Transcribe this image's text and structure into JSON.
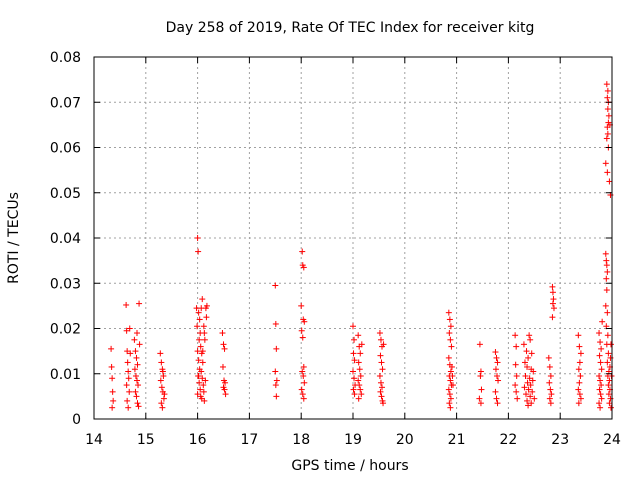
{
  "chart_data": {
    "type": "scatter",
    "title": "Day 258 of 2019, Rate Of TEC Index for receiver kitg",
    "xlabel": "GPS time / hours",
    "ylabel": "ROTI / TECUs",
    "xlim": [
      14,
      24
    ],
    "ylim": [
      0,
      0.08
    ],
    "xticks": [
      "14",
      "15",
      "16",
      "17",
      "18",
      "19",
      "20",
      "21",
      "22",
      "23",
      "24"
    ],
    "yticks": [
      "0",
      "0.01",
      "0.02",
      "0.03",
      "0.04",
      "0.05",
      "0.06",
      "0.07",
      "0.08"
    ],
    "grid": true,
    "marker": "+",
    "color": "#ff0000",
    "series": [
      {
        "name": "ROTI",
        "points": [
          [
            14.33,
            0.0155
          ],
          [
            14.34,
            0.0115
          ],
          [
            14.35,
            0.009
          ],
          [
            14.36,
            0.006
          ],
          [
            14.37,
            0.004
          ],
          [
            14.35,
            0.0025
          ],
          [
            14.62,
            0.0252
          ],
          [
            14.63,
            0.0195
          ],
          [
            14.64,
            0.015
          ],
          [
            14.65,
            0.0125
          ],
          [
            14.66,
            0.0105
          ],
          [
            14.67,
            0.009
          ],
          [
            14.63,
            0.0075
          ],
          [
            14.68,
            0.006
          ],
          [
            14.64,
            0.004
          ],
          [
            14.66,
            0.0025
          ],
          [
            14.7,
            0.0145
          ],
          [
            14.69,
            0.02
          ],
          [
            14.78,
            0.0175
          ],
          [
            14.8,
            0.015
          ],
          [
            14.82,
            0.0135
          ],
          [
            14.84,
            0.012
          ],
          [
            14.79,
            0.011
          ],
          [
            14.81,
            0.0095
          ],
          [
            14.83,
            0.0085
          ],
          [
            14.85,
            0.0075
          ],
          [
            14.8,
            0.006
          ],
          [
            14.82,
            0.005
          ],
          [
            14.84,
            0.0035
          ],
          [
            14.86,
            0.0028
          ],
          [
            14.87,
            0.0255
          ],
          [
            14.83,
            0.019
          ],
          [
            14.88,
            0.0165
          ],
          [
            15.28,
            0.0145
          ],
          [
            15.3,
            0.0125
          ],
          [
            15.32,
            0.011
          ],
          [
            15.34,
            0.0095
          ],
          [
            15.29,
            0.0085
          ],
          [
            15.31,
            0.007
          ],
          [
            15.33,
            0.006
          ],
          [
            15.35,
            0.0045
          ],
          [
            15.3,
            0.0035
          ],
          [
            15.32,
            0.0025
          ],
          [
            15.36,
            0.0055
          ],
          [
            15.33,
            0.0105
          ],
          [
            16.0,
            0.04
          ],
          [
            16.01,
            0.037
          ],
          [
            15.98,
            0.0245
          ],
          [
            16.02,
            0.0235
          ],
          [
            16.04,
            0.022
          ],
          [
            15.99,
            0.0205
          ],
          [
            16.05,
            0.019
          ],
          [
            16.03,
            0.0175
          ],
          [
            16.06,
            0.016
          ],
          [
            16.0,
            0.015
          ],
          [
            16.08,
            0.0145
          ],
          [
            16.02,
            0.013
          ],
          [
            16.1,
            0.0125
          ],
          [
            16.04,
            0.011
          ],
          [
            16.07,
            0.0105
          ],
          [
            16.01,
            0.0095
          ],
          [
            16.09,
            0.009
          ],
          [
            16.03,
            0.008
          ],
          [
            16.11,
            0.0075
          ],
          [
            16.05,
            0.0065
          ],
          [
            16.12,
            0.006
          ],
          [
            16.0,
            0.0055
          ],
          [
            16.06,
            0.005
          ],
          [
            16.08,
            0.0045
          ],
          [
            16.13,
            0.004
          ],
          [
            16.02,
            0.0095
          ],
          [
            16.15,
            0.0085
          ],
          [
            16.1,
            0.015
          ],
          [
            16.14,
            0.0175
          ],
          [
            16.12,
            0.0205
          ],
          [
            16.07,
            0.0245
          ],
          [
            16.16,
            0.0245
          ],
          [
            16.18,
            0.025
          ],
          [
            16.09,
            0.0265
          ],
          [
            16.17,
            0.0225
          ],
          [
            16.13,
            0.019
          ],
          [
            16.48,
            0.019
          ],
          [
            16.5,
            0.0165
          ],
          [
            16.52,
            0.0155
          ],
          [
            16.49,
            0.0115
          ],
          [
            16.51,
            0.0085
          ],
          [
            16.53,
            0.008
          ],
          [
            16.5,
            0.007
          ],
          [
            16.52,
            0.0065
          ],
          [
            16.54,
            0.0055
          ],
          [
            17.5,
            0.0295
          ],
          [
            17.51,
            0.021
          ],
          [
            17.52,
            0.0155
          ],
          [
            17.5,
            0.0105
          ],
          [
            17.53,
            0.0085
          ],
          [
            17.51,
            0.0075
          ],
          [
            17.52,
            0.005
          ],
          [
            18.02,
            0.037
          ],
          [
            18.03,
            0.034
          ],
          [
            18.05,
            0.0335
          ],
          [
            18.0,
            0.025
          ],
          [
            18.04,
            0.022
          ],
          [
            18.06,
            0.0215
          ],
          [
            18.01,
            0.0195
          ],
          [
            18.03,
            0.018
          ],
          [
            18.05,
            0.0115
          ],
          [
            18.02,
            0.0105
          ],
          [
            18.04,
            0.0095
          ],
          [
            18.06,
            0.008
          ],
          [
            18.01,
            0.0065
          ],
          [
            18.03,
            0.0055
          ],
          [
            18.05,
            0.0045
          ],
          [
            19.0,
            0.0205
          ],
          [
            19.02,
            0.0175
          ],
          [
            19.01,
            0.0145
          ],
          [
            19.03,
            0.013
          ],
          [
            19.0,
            0.0105
          ],
          [
            19.02,
            0.009
          ],
          [
            19.04,
            0.0075
          ],
          [
            19.01,
            0.0065
          ],
          [
            19.03,
            0.0055
          ],
          [
            19.1,
            0.0185
          ],
          [
            19.12,
            0.016
          ],
          [
            19.14,
            0.0145
          ],
          [
            19.11,
            0.0125
          ],
          [
            19.13,
            0.011
          ],
          [
            19.15,
            0.0095
          ],
          [
            19.1,
            0.0085
          ],
          [
            19.12,
            0.0075
          ],
          [
            19.14,
            0.0065
          ],
          [
            19.16,
            0.0055
          ],
          [
            19.11,
            0.0045
          ],
          [
            19.17,
            0.0165
          ],
          [
            19.52,
            0.019
          ],
          [
            19.54,
            0.0175
          ],
          [
            19.56,
            0.016
          ],
          [
            19.53,
            0.014
          ],
          [
            19.55,
            0.0125
          ],
          [
            19.57,
            0.011
          ],
          [
            19.52,
            0.0095
          ],
          [
            19.54,
            0.008
          ],
          [
            19.56,
            0.007
          ],
          [
            19.53,
            0.006
          ],
          [
            19.55,
            0.005
          ],
          [
            19.57,
            0.004
          ],
          [
            19.58,
            0.0035
          ],
          [
            19.59,
            0.0165
          ],
          [
            20.85,
            0.0235
          ],
          [
            20.87,
            0.022
          ],
          [
            20.89,
            0.0205
          ],
          [
            20.86,
            0.019
          ],
          [
            20.88,
            0.0175
          ],
          [
            20.9,
            0.016
          ],
          [
            20.85,
            0.0135
          ],
          [
            20.87,
            0.012
          ],
          [
            20.89,
            0.0105
          ],
          [
            20.86,
            0.0095
          ],
          [
            20.88,
            0.0085
          ],
          [
            20.9,
            0.0075
          ],
          [
            20.85,
            0.0065
          ],
          [
            20.87,
            0.0055
          ],
          [
            20.89,
            0.0045
          ],
          [
            20.86,
            0.0035
          ],
          [
            20.88,
            0.0025
          ],
          [
            20.91,
            0.0115
          ],
          [
            20.92,
            0.0095
          ],
          [
            20.93,
            0.0075
          ],
          [
            21.45,
            0.0165
          ],
          [
            21.47,
            0.0105
          ],
          [
            21.46,
            0.0095
          ],
          [
            21.48,
            0.0065
          ],
          [
            21.47,
            0.0035
          ],
          [
            21.44,
            0.0045
          ],
          [
            21.75,
            0.0148
          ],
          [
            21.77,
            0.0135
          ],
          [
            21.79,
            0.0125
          ],
          [
            21.76,
            0.011
          ],
          [
            21.78,
            0.0095
          ],
          [
            21.8,
            0.0085
          ],
          [
            21.75,
            0.006
          ],
          [
            21.77,
            0.0045
          ],
          [
            21.79,
            0.0035
          ],
          [
            22.13,
            0.0185
          ],
          [
            22.15,
            0.016
          ],
          [
            22.14,
            0.012
          ],
          [
            22.16,
            0.0095
          ],
          [
            22.13,
            0.0075
          ],
          [
            22.15,
            0.006
          ],
          [
            22.17,
            0.0045
          ],
          [
            22.3,
            0.0165
          ],
          [
            22.35,
            0.015
          ],
          [
            22.4,
            0.0185
          ],
          [
            22.42,
            0.0175
          ],
          [
            22.45,
            0.0145
          ],
          [
            22.38,
            0.0135
          ],
          [
            22.32,
            0.0125
          ],
          [
            22.36,
            0.0115
          ],
          [
            22.44,
            0.011
          ],
          [
            22.48,
            0.0105
          ],
          [
            22.33,
            0.0095
          ],
          [
            22.41,
            0.009
          ],
          [
            22.47,
            0.0085
          ],
          [
            22.37,
            0.008
          ],
          [
            22.43,
            0.0075
          ],
          [
            22.31,
            0.007
          ],
          [
            22.39,
            0.0065
          ],
          [
            22.46,
            0.006
          ],
          [
            22.34,
            0.0055
          ],
          [
            22.42,
            0.005
          ],
          [
            22.5,
            0.0045
          ],
          [
            22.36,
            0.004
          ],
          [
            22.44,
            0.0035
          ],
          [
            22.38,
            0.003
          ],
          [
            22.78,
            0.0135
          ],
          [
            22.8,
            0.0115
          ],
          [
            22.82,
            0.0095
          ],
          [
            22.79,
            0.008
          ],
          [
            22.81,
            0.0065
          ],
          [
            22.83,
            0.0055
          ],
          [
            22.8,
            0.0045
          ],
          [
            22.82,
            0.0035
          ],
          [
            22.85,
            0.0292
          ],
          [
            22.86,
            0.028
          ],
          [
            22.87,
            0.0265
          ],
          [
            22.86,
            0.0255
          ],
          [
            22.88,
            0.0245
          ],
          [
            22.85,
            0.0225
          ],
          [
            23.35,
            0.0185
          ],
          [
            23.37,
            0.016
          ],
          [
            23.4,
            0.0145
          ],
          [
            23.38,
            0.0125
          ],
          [
            23.36,
            0.011
          ],
          [
            23.39,
            0.0095
          ],
          [
            23.37,
            0.008
          ],
          [
            23.35,
            0.0065
          ],
          [
            23.38,
            0.0055
          ],
          [
            23.4,
            0.0045
          ],
          [
            23.36,
            0.0035
          ],
          [
            23.75,
            0.019
          ],
          [
            23.77,
            0.017
          ],
          [
            23.79,
            0.0155
          ],
          [
            23.76,
            0.014
          ],
          [
            23.78,
            0.0125
          ],
          [
            23.8,
            0.011
          ],
          [
            23.75,
            0.0095
          ],
          [
            23.77,
            0.0085
          ],
          [
            23.79,
            0.0075
          ],
          [
            23.76,
            0.0065
          ],
          [
            23.78,
            0.0055
          ],
          [
            23.8,
            0.0045
          ],
          [
            23.75,
            0.0035
          ],
          [
            23.77,
            0.0025
          ],
          [
            23.81,
            0.0215
          ],
          [
            23.88,
            0.0365
          ],
          [
            23.89,
            0.035
          ],
          [
            23.9,
            0.034
          ],
          [
            23.91,
            0.0325
          ],
          [
            23.89,
            0.031
          ],
          [
            23.9,
            0.0285
          ],
          [
            23.88,
            0.025
          ],
          [
            23.91,
            0.0235
          ],
          [
            23.89,
            0.0205
          ],
          [
            23.92,
            0.0185
          ],
          [
            23.9,
            0.0165
          ],
          [
            23.93,
            0.0145
          ],
          [
            23.91,
            0.0125
          ],
          [
            23.94,
            0.0105
          ],
          [
            23.92,
            0.0095
          ],
          [
            23.95,
            0.0085
          ],
          [
            23.93,
            0.0075
          ],
          [
            23.96,
            0.0065
          ],
          [
            23.94,
            0.0055
          ],
          [
            23.97,
            0.0045
          ],
          [
            23.95,
            0.0035
          ],
          [
            23.98,
            0.0025
          ],
          [
            23.96,
            0.0115
          ],
          [
            23.97,
            0.0135
          ],
          [
            23.98,
            0.0165
          ],
          [
            23.99,
            0.0095
          ],
          [
            23.9,
            0.074
          ],
          [
            23.92,
            0.0725
          ],
          [
            23.91,
            0.071
          ],
          [
            23.93,
            0.07
          ],
          [
            23.92,
            0.0685
          ],
          [
            23.94,
            0.067
          ],
          [
            23.93,
            0.0655
          ],
          [
            23.91,
            0.0645
          ],
          [
            23.92,
            0.063
          ],
          [
            23.9,
            0.062
          ],
          [
            23.93,
            0.06
          ],
          [
            23.88,
            0.0565
          ],
          [
            23.91,
            0.0545
          ],
          [
            23.95,
            0.0525
          ],
          [
            23.97,
            0.0495
          ],
          [
            23.96,
            0.065
          ]
        ]
      }
    ]
  }
}
